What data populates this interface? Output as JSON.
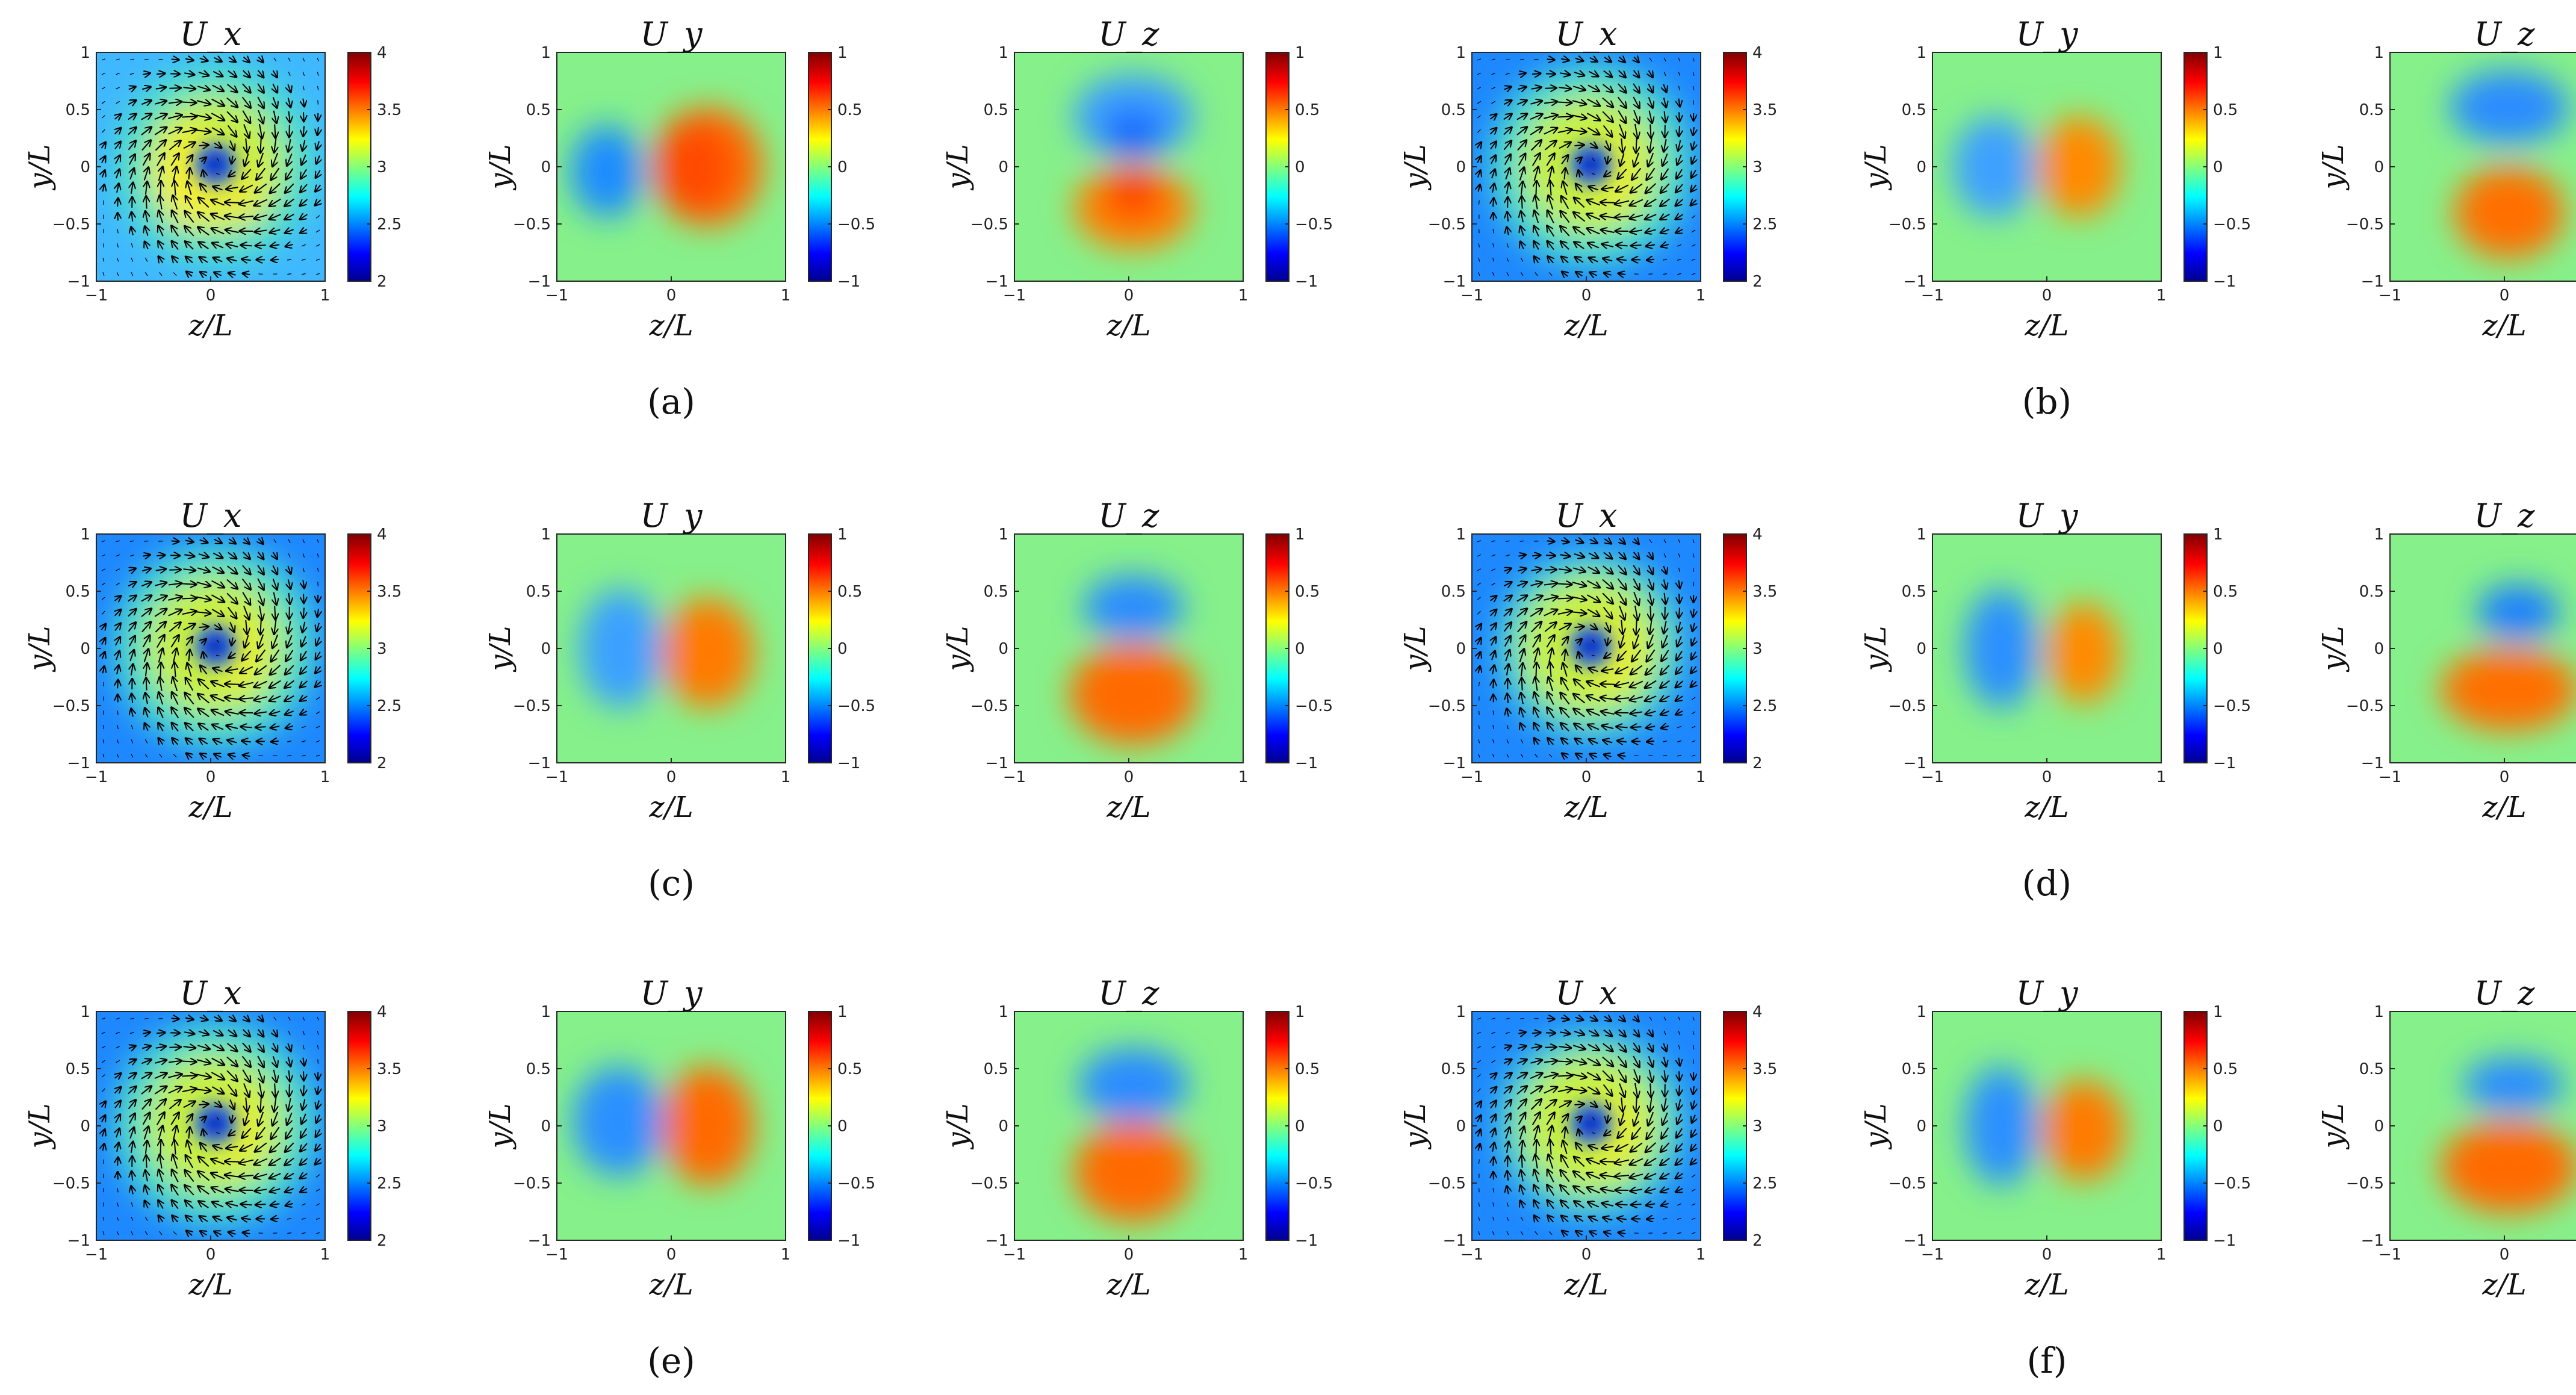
{
  "figure": {
    "panels": [
      {
        "caption": "(a)",
        "variant": "a"
      },
      {
        "caption": "(b)",
        "variant": "b"
      },
      {
        "caption": "(c)",
        "variant": "c"
      },
      {
        "caption": "(d)",
        "variant": "d"
      },
      {
        "caption": "(e)",
        "variant": "e"
      },
      {
        "caption": "(f)",
        "variant": "f"
      }
    ]
  },
  "chart_data": {
    "type": "heatmap",
    "subplot_titles": [
      "U_x",
      "U_y",
      "U_z"
    ],
    "xlabel": "z/L",
    "ylabel": "y/L",
    "xlim": [
      -1,
      1
    ],
    "ylim": [
      -1,
      1
    ],
    "xticks": [
      -1,
      0,
      1
    ],
    "yticks": [
      -1,
      -0.5,
      0,
      0.5,
      1
    ],
    "colorbars": {
      "U_x": {
        "range": [
          2,
          4
        ],
        "ticks": [
          2,
          2.5,
          3,
          3.5,
          4
        ]
      },
      "U_y": {
        "range": [
          -1,
          1
        ],
        "ticks": [
          -1,
          -0.5,
          0,
          0.5,
          1
        ]
      },
      "U_z": {
        "range": [
          -1,
          1
        ],
        "ticks": [
          -1,
          -0.5,
          0,
          0.5,
          1
        ]
      }
    },
    "colormap": [
      "#00008f",
      "#0000ff",
      "#00ffff",
      "#ffff00",
      "#ff0000",
      "#800000"
    ],
    "captions": [
      "(a)",
      "(b)",
      "(c)",
      "(d)",
      "(e)",
      "(f)"
    ],
    "notes": "U_x panels include vector arrows showing swirling in-plane velocity"
  }
}
